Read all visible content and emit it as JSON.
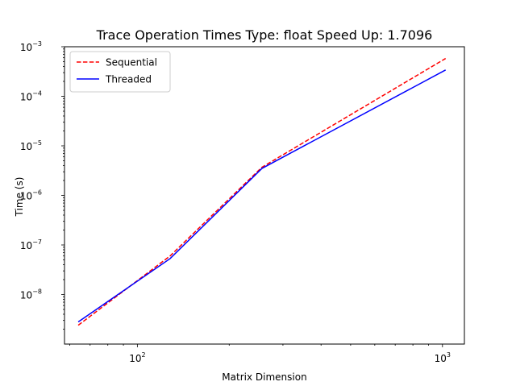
{
  "chart_data": {
    "type": "line",
    "title": "Trace Operation Times Type: float Speed Up: 1.7096",
    "xlabel": "Matrix Dimension",
    "ylabel": "Time (s)",
    "xscale": "log",
    "yscale": "log",
    "xlim": [
      57.7,
      1180
    ],
    "ylim": [
      1e-09,
      0.001
    ],
    "x_major_ticks": [
      {
        "value": 100,
        "base": "10",
        "exp": "2"
      },
      {
        "value": 1000,
        "base": "10",
        "exp": "3"
      }
    ],
    "y_major_ticks": [
      {
        "value": 1e-08,
        "base": "10",
        "exp": "−8"
      },
      {
        "value": 1e-07,
        "base": "10",
        "exp": "−7"
      },
      {
        "value": 1e-06,
        "base": "10",
        "exp": "−6"
      },
      {
        "value": 1e-05,
        "base": "10",
        "exp": "−5"
      },
      {
        "value": 0.0001,
        "base": "10",
        "exp": "−4"
      },
      {
        "value": 0.001,
        "base": "10",
        "exp": "−3"
      }
    ],
    "grid": false,
    "legend_position": "top-left",
    "x": [
      64,
      128,
      256,
      1024
    ],
    "series": [
      {
        "name": "Sequential",
        "color": "#ff0000",
        "dash": "dashed",
        "values": [
          2.4e-09,
          6e-08,
          3.7e-06,
          0.00058
        ]
      },
      {
        "name": "Threaded",
        "color": "#0000ff",
        "dash": "solid",
        "values": [
          2.8e-09,
          5.3e-08,
          3.5e-06,
          0.00034
        ]
      }
    ]
  }
}
